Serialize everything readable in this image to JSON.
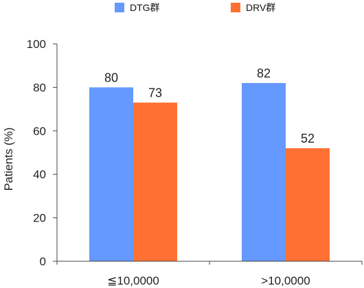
{
  "chart_data": {
    "type": "bar",
    "categories": [
      "≦10,0000",
      ">10,0000"
    ],
    "series": [
      {
        "name": "DTG群",
        "values": [
          80,
          82
        ],
        "color": "#6699ff"
      },
      {
        "name": "DRV群",
        "values": [
          73,
          52
        ],
        "color": "#ff7033"
      }
    ],
    "ylabel": "Patients (%)",
    "xlabel": "",
    "ylim": [
      0,
      100
    ],
    "yticks": [
      0,
      20,
      40,
      60,
      80,
      100
    ],
    "data_labels": true,
    "grid": false,
    "legend_position": "top"
  }
}
